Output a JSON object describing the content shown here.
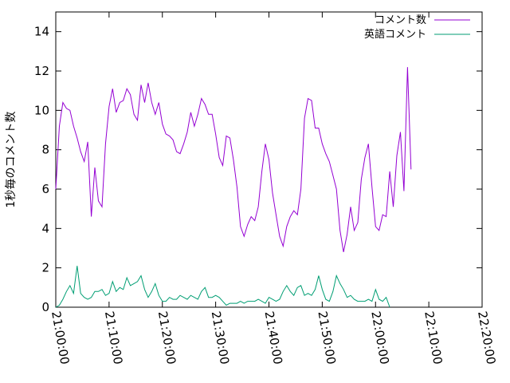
{
  "chart_data": {
    "type": "line",
    "title": "",
    "xlabel": "",
    "ylabel": "1秒毎のコメント数",
    "xlim": [
      "21:00:00",
      "22:20:00"
    ],
    "ylim": [
      0,
      15
    ],
    "yticks": [
      0,
      2,
      4,
      6,
      8,
      10,
      12,
      14
    ],
    "xticks": [
      "21:00:00",
      "21:10:00",
      "21:20:00",
      "21:30:00",
      "21:40:00",
      "21:50:00",
      "22:00:00",
      "22:10:00",
      "22:20:00"
    ],
    "grid": false,
    "legend_position": "top-right",
    "series": [
      {
        "name": "コメント数",
        "color": "#9400d3",
        "points": [
          [
            "21:00:00",
            6.0
          ],
          [
            "21:00:40",
            9.2
          ],
          [
            "21:01:20",
            10.4
          ],
          [
            "21:02:00",
            10.1
          ],
          [
            "21:02:40",
            10.0
          ],
          [
            "21:03:20",
            9.2
          ],
          [
            "21:04:00",
            8.6
          ],
          [
            "21:04:40",
            7.9
          ],
          [
            "21:05:20",
            7.4
          ],
          [
            "21:06:00",
            8.4
          ],
          [
            "21:06:40",
            4.6
          ],
          [
            "21:07:20",
            7.1
          ],
          [
            "21:08:00",
            5.4
          ],
          [
            "21:08:40",
            5.1
          ],
          [
            "21:09:20",
            8.3
          ],
          [
            "21:10:00",
            10.2
          ],
          [
            "21:10:40",
            11.1
          ],
          [
            "21:11:20",
            9.9
          ],
          [
            "21:12:00",
            10.4
          ],
          [
            "21:12:40",
            10.5
          ],
          [
            "21:13:20",
            11.1
          ],
          [
            "21:14:00",
            10.8
          ],
          [
            "21:14:40",
            9.8
          ],
          [
            "21:15:20",
            9.5
          ],
          [
            "21:16:00",
            11.3
          ],
          [
            "21:16:40",
            10.4
          ],
          [
            "21:17:20",
            11.4
          ],
          [
            "21:18:00",
            10.4
          ],
          [
            "21:18:40",
            9.8
          ],
          [
            "21:19:20",
            10.4
          ],
          [
            "21:20:00",
            9.3
          ],
          [
            "21:20:40",
            8.8
          ],
          [
            "21:21:20",
            8.7
          ],
          [
            "21:22:00",
            8.5
          ],
          [
            "21:22:40",
            7.9
          ],
          [
            "21:23:20",
            7.8
          ],
          [
            "21:24:00",
            8.3
          ],
          [
            "21:24:40",
            8.9
          ],
          [
            "21:25:20",
            9.9
          ],
          [
            "21:26:00",
            9.2
          ],
          [
            "21:26:40",
            9.8
          ],
          [
            "21:27:20",
            10.6
          ],
          [
            "21:28:00",
            10.3
          ],
          [
            "21:28:40",
            9.8
          ],
          [
            "21:29:20",
            9.8
          ],
          [
            "21:30:00",
            8.8
          ],
          [
            "21:30:40",
            7.6
          ],
          [
            "21:31:20",
            7.2
          ],
          [
            "21:32:00",
            8.7
          ],
          [
            "21:32:40",
            8.6
          ],
          [
            "21:33:20",
            7.5
          ],
          [
            "21:34:00",
            6.1
          ],
          [
            "21:34:40",
            4.1
          ],
          [
            "21:35:20",
            3.6
          ],
          [
            "21:36:00",
            4.2
          ],
          [
            "21:36:40",
            4.6
          ],
          [
            "21:37:20",
            4.4
          ],
          [
            "21:38:00",
            5.1
          ],
          [
            "21:38:40",
            6.9
          ],
          [
            "21:39:20",
            8.3
          ],
          [
            "21:40:00",
            7.5
          ],
          [
            "21:40:40",
            5.8
          ],
          [
            "21:41:20",
            4.7
          ],
          [
            "21:42:00",
            3.6
          ],
          [
            "21:42:40",
            3.1
          ],
          [
            "21:43:20",
            4.1
          ],
          [
            "21:44:00",
            4.6
          ],
          [
            "21:44:40",
            4.9
          ],
          [
            "21:45:20",
            4.7
          ],
          [
            "21:46:00",
            6.0
          ],
          [
            "21:46:40",
            9.6
          ],
          [
            "21:47:20",
            10.6
          ],
          [
            "21:48:00",
            10.5
          ],
          [
            "21:48:40",
            9.1
          ],
          [
            "21:49:20",
            9.1
          ],
          [
            "21:50:00",
            8.3
          ],
          [
            "21:50:40",
            7.8
          ],
          [
            "21:51:20",
            7.4
          ],
          [
            "21:52:00",
            6.7
          ],
          [
            "21:52:40",
            6.0
          ],
          [
            "21:53:20",
            3.9
          ],
          [
            "21:54:00",
            2.8
          ],
          [
            "21:54:40",
            3.7
          ],
          [
            "21:55:20",
            5.1
          ],
          [
            "21:56:00",
            3.9
          ],
          [
            "21:56:40",
            4.3
          ],
          [
            "21:57:20",
            6.5
          ],
          [
            "21:58:00",
            7.6
          ],
          [
            "21:58:40",
            8.3
          ],
          [
            "21:59:20",
            6.1
          ],
          [
            "22:00:00",
            4.1
          ],
          [
            "22:00:40",
            3.9
          ],
          [
            "22:01:20",
            4.7
          ],
          [
            "22:02:00",
            4.6
          ],
          [
            "22:02:40",
            6.9
          ],
          [
            "22:03:20",
            5.1
          ],
          [
            "22:04:00",
            7.7
          ],
          [
            "22:04:40",
            8.9
          ],
          [
            "22:05:20",
            5.9
          ],
          [
            "22:06:00",
            12.2
          ],
          [
            "22:06:40",
            7.0
          ]
        ]
      },
      {
        "name": "英語コメント",
        "color": "#009e73",
        "points": [
          [
            "21:00:00",
            0.0
          ],
          [
            "21:00:40",
            0.1
          ],
          [
            "21:01:20",
            0.4
          ],
          [
            "21:02:00",
            0.8
          ],
          [
            "21:02:40",
            1.1
          ],
          [
            "21:03:20",
            0.7
          ],
          [
            "21:04:00",
            2.1
          ],
          [
            "21:04:40",
            0.7
          ],
          [
            "21:05:20",
            0.5
          ],
          [
            "21:06:00",
            0.4
          ],
          [
            "21:06:40",
            0.5
          ],
          [
            "21:07:20",
            0.8
          ],
          [
            "21:08:00",
            0.8
          ],
          [
            "21:08:40",
            0.9
          ],
          [
            "21:09:20",
            0.6
          ],
          [
            "21:10:00",
            0.7
          ],
          [
            "21:10:40",
            1.3
          ],
          [
            "21:11:20",
            0.8
          ],
          [
            "21:12:00",
            1.0
          ],
          [
            "21:12:40",
            0.9
          ],
          [
            "21:13:20",
            1.5
          ],
          [
            "21:14:00",
            1.1
          ],
          [
            "21:14:40",
            1.2
          ],
          [
            "21:15:20",
            1.3
          ],
          [
            "21:16:00",
            1.6
          ],
          [
            "21:16:40",
            0.9
          ],
          [
            "21:17:20",
            0.5
          ],
          [
            "21:18:00",
            0.8
          ],
          [
            "21:18:40",
            1.2
          ],
          [
            "21:19:20",
            0.6
          ],
          [
            "21:20:00",
            0.3
          ],
          [
            "21:20:40",
            0.3
          ],
          [
            "21:21:20",
            0.5
          ],
          [
            "21:22:00",
            0.4
          ],
          [
            "21:22:40",
            0.4
          ],
          [
            "21:23:20",
            0.6
          ],
          [
            "21:24:00",
            0.5
          ],
          [
            "21:24:40",
            0.4
          ],
          [
            "21:25:20",
            0.6
          ],
          [
            "21:26:00",
            0.5
          ],
          [
            "21:26:40",
            0.4
          ],
          [
            "21:27:20",
            0.8
          ],
          [
            "21:28:00",
            1.0
          ],
          [
            "21:28:40",
            0.5
          ],
          [
            "21:29:20",
            0.5
          ],
          [
            "21:30:00",
            0.6
          ],
          [
            "21:30:40",
            0.5
          ],
          [
            "21:31:20",
            0.3
          ],
          [
            "21:32:00",
            0.1
          ],
          [
            "21:32:40",
            0.2
          ],
          [
            "21:33:20",
            0.2
          ],
          [
            "21:34:00",
            0.2
          ],
          [
            "21:34:40",
            0.3
          ],
          [
            "21:35:20",
            0.2
          ],
          [
            "21:36:00",
            0.3
          ],
          [
            "21:36:40",
            0.3
          ],
          [
            "21:37:20",
            0.3
          ],
          [
            "21:38:00",
            0.4
          ],
          [
            "21:38:40",
            0.3
          ],
          [
            "21:39:20",
            0.2
          ],
          [
            "21:40:00",
            0.5
          ],
          [
            "21:40:40",
            0.4
          ],
          [
            "21:41:20",
            0.3
          ],
          [
            "21:42:00",
            0.4
          ],
          [
            "21:42:40",
            0.8
          ],
          [
            "21:43:20",
            1.1
          ],
          [
            "21:44:00",
            0.8
          ],
          [
            "21:44:40",
            0.6
          ],
          [
            "21:45:20",
            1.0
          ],
          [
            "21:46:00",
            1.1
          ],
          [
            "21:46:40",
            0.6
          ],
          [
            "21:47:20",
            0.7
          ],
          [
            "21:48:00",
            0.6
          ],
          [
            "21:48:40",
            0.9
          ],
          [
            "21:49:20",
            1.6
          ],
          [
            "21:50:00",
            0.9
          ],
          [
            "21:50:40",
            0.4
          ],
          [
            "21:51:20",
            0.3
          ],
          [
            "21:52:00",
            0.8
          ],
          [
            "21:52:40",
            1.6
          ],
          [
            "21:53:20",
            1.2
          ],
          [
            "21:54:00",
            0.9
          ],
          [
            "21:54:40",
            0.5
          ],
          [
            "21:55:20",
            0.6
          ],
          [
            "21:56:00",
            0.4
          ],
          [
            "21:56:40",
            0.3
          ],
          [
            "21:57:20",
            0.3
          ],
          [
            "21:58:00",
            0.3
          ],
          [
            "21:58:40",
            0.4
          ],
          [
            "21:59:20",
            0.3
          ],
          [
            "22:00:00",
            0.9
          ],
          [
            "22:00:40",
            0.4
          ],
          [
            "22:01:20",
            0.3
          ],
          [
            "22:02:00",
            0.5
          ],
          [
            "22:02:40",
            0.0
          ]
        ]
      }
    ]
  }
}
